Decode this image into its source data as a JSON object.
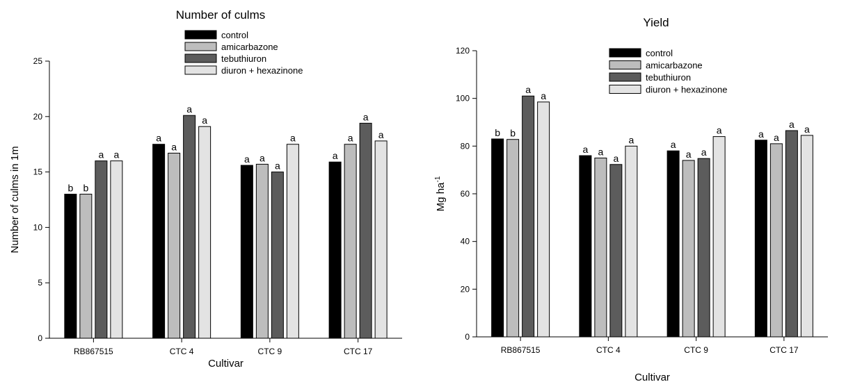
{
  "chart_data": [
    {
      "type": "bar",
      "title": "Number of culms",
      "xlabel": "Cultivar",
      "ylabel": "Number of culms in 1m",
      "ylim": [
        0,
        25
      ],
      "yticks": [
        0,
        5,
        10,
        15,
        20,
        25
      ],
      "categories": [
        "RB867515",
        "CTC 4",
        "CTC 9",
        "CTC 17"
      ],
      "legend_position": "top-center",
      "grid": false,
      "series": [
        {
          "name": "control",
          "color": "#000000",
          "values": [
            13.0,
            17.5,
            15.6,
            15.9
          ],
          "labels": [
            "b",
            "a",
            "a",
            "a"
          ]
        },
        {
          "name": "amicarbazone",
          "color": "#bdbdbd",
          "values": [
            13.0,
            16.7,
            15.7,
            17.5
          ],
          "labels": [
            "b",
            "a",
            "a",
            "a"
          ]
        },
        {
          "name": "tebuthiuron",
          "color": "#5c5c5c",
          "values": [
            16.0,
            20.1,
            15.0,
            19.4
          ],
          "labels": [
            "a",
            "a",
            "a",
            "a"
          ]
        },
        {
          "name": "diuron + hexazinone",
          "color": "#e3e3e3",
          "values": [
            16.0,
            19.1,
            17.5,
            17.8
          ],
          "labels": [
            "a",
            "a",
            "a",
            "a"
          ]
        }
      ]
    },
    {
      "type": "bar",
      "title": "Yield",
      "xlabel": "Cultivar",
      "ylabel": "Mg ha",
      "ylabel_superscript": "-1",
      "ylim": [
        0,
        120
      ],
      "yticks": [
        0,
        20,
        40,
        60,
        80,
        100,
        120
      ],
      "categories": [
        "RB867515",
        "CTC 4",
        "CTC 9",
        "CTC 17"
      ],
      "legend_position": "top-center",
      "grid": false,
      "series": [
        {
          "name": "control",
          "color": "#000000",
          "values": [
            83.0,
            76.0,
            78.0,
            82.5
          ],
          "labels": [
            "b",
            "a",
            "a",
            "a"
          ]
        },
        {
          "name": "amicarbazone",
          "color": "#bdbdbd",
          "values": [
            82.8,
            75.0,
            74.0,
            81.0
          ],
          "labels": [
            "b",
            "a",
            "a",
            "a"
          ]
        },
        {
          "name": "tebuthiuron",
          "color": "#5c5c5c",
          "values": [
            101.0,
            72.3,
            74.8,
            86.5
          ],
          "labels": [
            "a",
            "a",
            "a",
            "a"
          ]
        },
        {
          "name": "diuron + hexazinone",
          "color": "#e3e3e3",
          "values": [
            98.5,
            80.0,
            84.0,
            84.5
          ],
          "labels": [
            "a",
            "a",
            "a",
            "a"
          ]
        }
      ]
    }
  ]
}
